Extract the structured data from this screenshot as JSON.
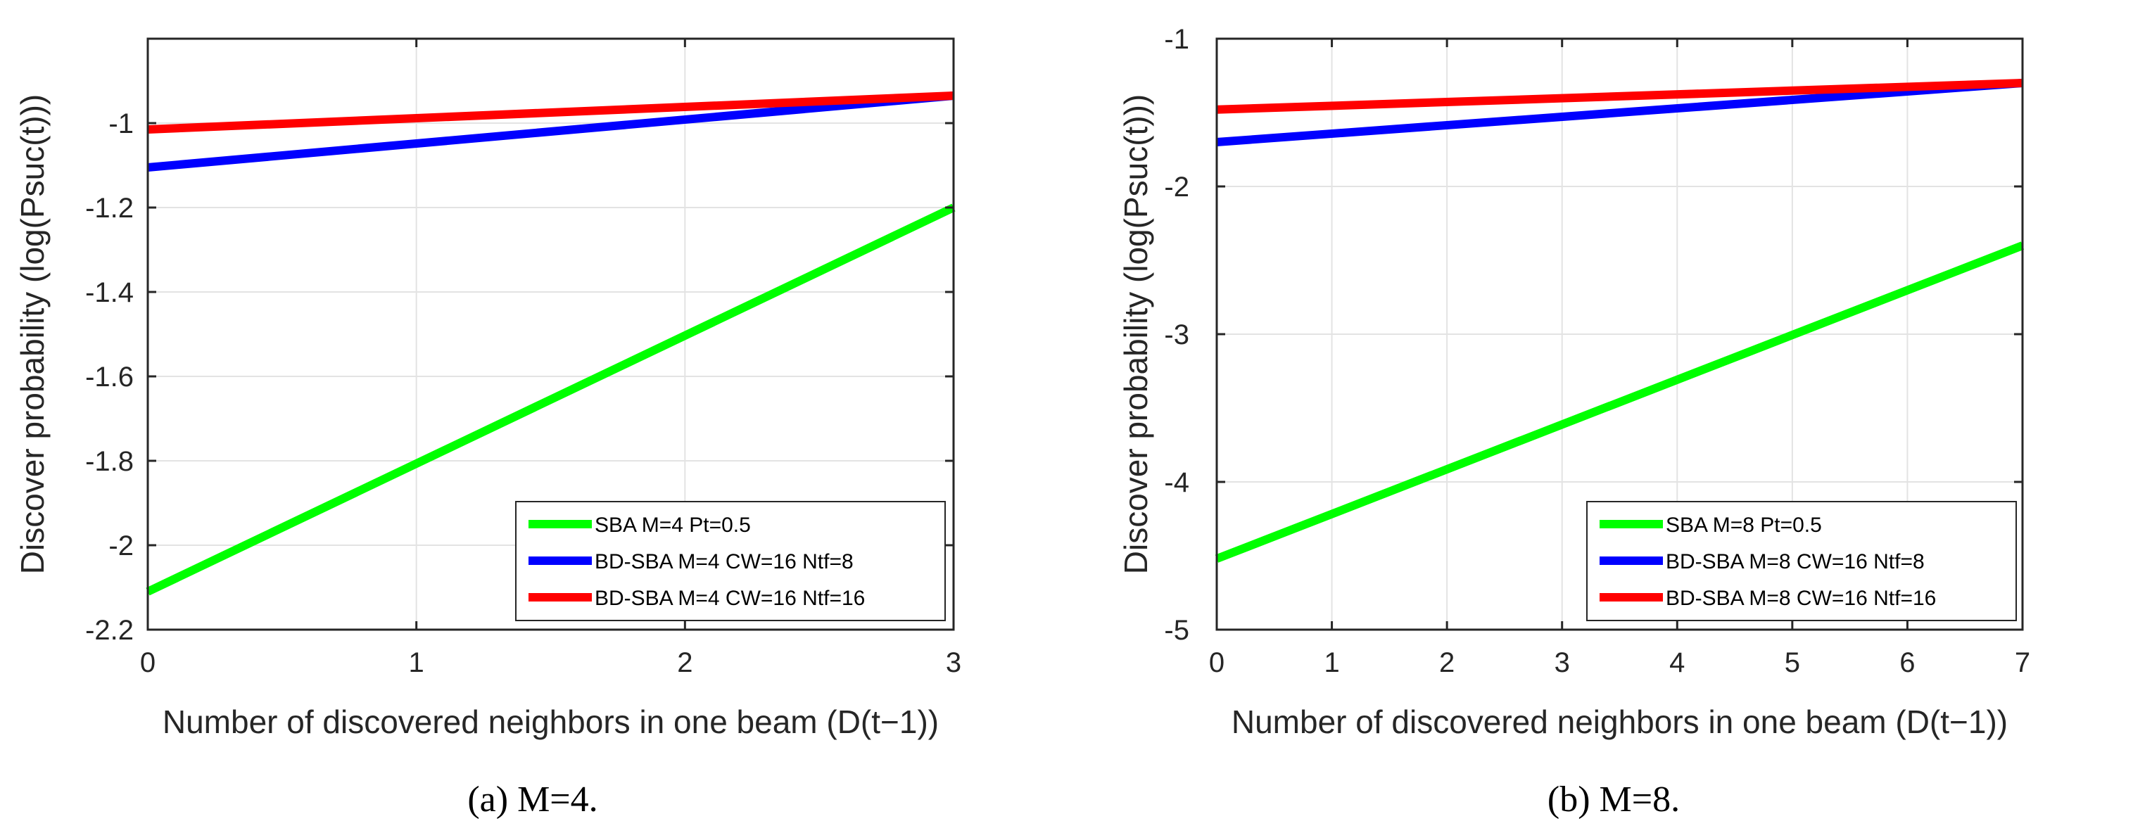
{
  "chart_data": [
    {
      "type": "line",
      "xlabel": "Number of discovered neighbors in one beam (D(t−1))",
      "ylabel": "Discover probability (log(Psuc(t)))",
      "caption": "(a)  M=4.",
      "xlim": [
        0,
        3
      ],
      "ylim": [
        -2.2,
        -0.8
      ],
      "xticks": [
        0,
        1,
        2,
        3
      ],
      "xtick_labels": [
        "0",
        "1",
        "2",
        "3"
      ],
      "yticks": [
        -2.2,
        -2,
        -1.8,
        -1.6,
        -1.4,
        -1.2,
        -1
      ],
      "ytick_labels": [
        "-2.2",
        "-2",
        "-1.8",
        "-1.6",
        "-1.4",
        "-1.2",
        "-1"
      ],
      "grid": true,
      "legend_position": "bottom-right",
      "series": [
        {
          "name": "SBA M=4 Pt=0.5",
          "color": "#00ff00",
          "x": [
            0,
            3
          ],
          "values": [
            -2.11,
            -1.2
          ]
        },
        {
          "name": "BD-SBA M=4 CW=16 Ntf=8",
          "color": "#0000ff",
          "x": [
            0,
            3
          ],
          "values": [
            -1.105,
            -0.935
          ]
        },
        {
          "name": "BD-SBA M=4 CW=16 Ntf=16",
          "color": "#ff0000",
          "x": [
            0,
            3
          ],
          "values": [
            -1.015,
            -0.935
          ]
        }
      ]
    },
    {
      "type": "line",
      "xlabel": "Number of discovered neighbors in one beam (D(t−1))",
      "ylabel": "Discover probability (log(Psuc(t)))",
      "caption": "(b)  M=8.",
      "xlim": [
        0,
        7
      ],
      "ylim": [
        -5,
        -1
      ],
      "xticks": [
        0,
        1,
        2,
        3,
        4,
        5,
        6,
        7
      ],
      "xtick_labels": [
        "0",
        "1",
        "2",
        "3",
        "4",
        "5",
        "6",
        "7"
      ],
      "yticks": [
        -5,
        -4,
        -3,
        -2,
        -1
      ],
      "ytick_labels": [
        "-5",
        "-4",
        "-3",
        "-2",
        "-1"
      ],
      "grid": true,
      "legend_position": "bottom-right",
      "series": [
        {
          "name": "SBA M=8 Pt=0.5",
          "color": "#00ff00",
          "x": [
            0,
            7
          ],
          "values": [
            -4.52,
            -2.4
          ]
        },
        {
          "name": "BD-SBA M=8 CW=16 Ntf=8",
          "color": "#0000ff",
          "x": [
            0,
            7
          ],
          "values": [
            -1.7,
            -1.3
          ]
        },
        {
          "name": "BD-SBA M=8 CW=16 Ntf=16",
          "color": "#ff0000",
          "x": [
            0,
            7
          ],
          "values": [
            -1.48,
            -1.3
          ]
        }
      ]
    }
  ]
}
